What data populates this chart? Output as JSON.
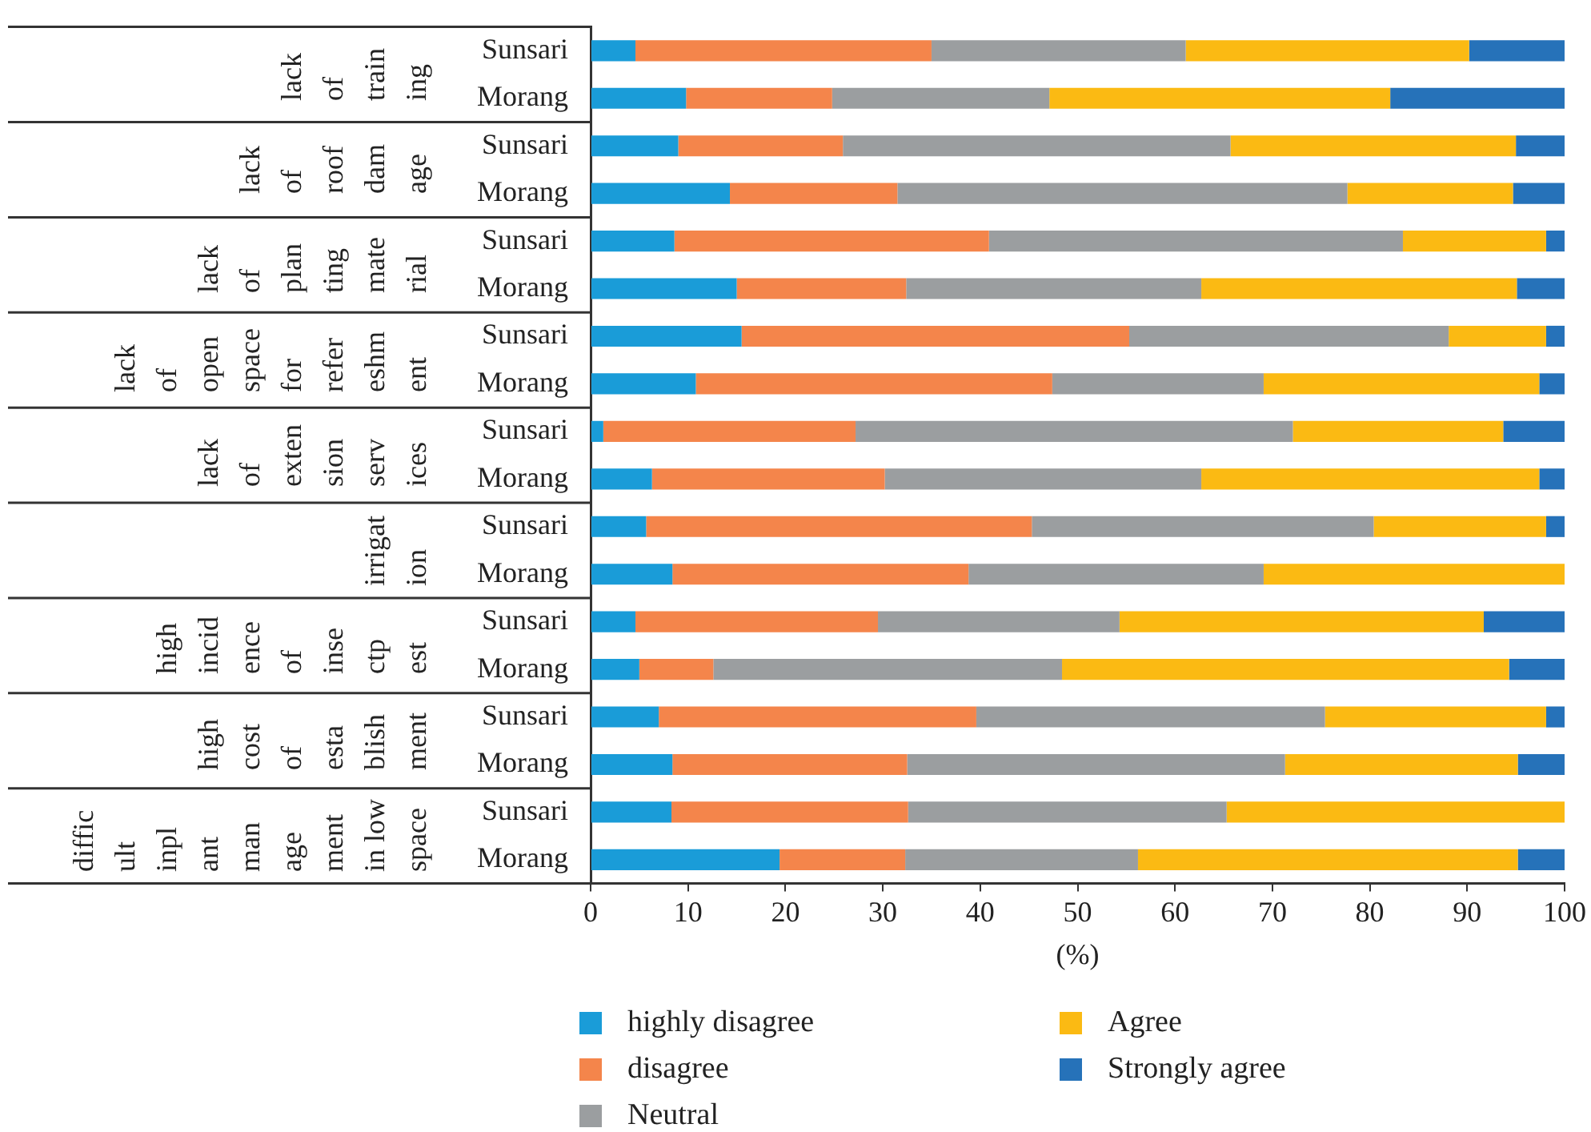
{
  "chart_data": {
    "type": "bar",
    "orientation": "horizontal",
    "stacked": true,
    "xlabel": "(%)",
    "categories": [
      "Sunsari",
      "Morang",
      "Sunsari",
      "Morang",
      "Sunsari",
      "Morang",
      "Sunsari",
      "Morang",
      "Sunsari",
      "Morang",
      "Sunsari",
      "Morang",
      "Sunsari",
      "Morang",
      "Sunsari",
      "Morang",
      "Sunsari",
      "Morang"
    ],
    "annotations": [
      "lack\nof\ntrain\ning",
      "lack\nof\nroof\ndam\nage",
      "lack\nof\nplan\nting\nmate\nrial",
      "lack\nof\nopen\nspace\nfor\nrefer\neshm\nent",
      "lack\nof\nexten\nsion\nserv\nices",
      "irrigat\nion",
      "high\nincid\nence\nof\ninse\nctp\nest",
      "high\ncost\nof\nesta\nblish\nment",
      "diffic\nult\ninpl\nant\nman\nage\nment\nin low\nspace"
    ],
    "series": [
      {
        "name": "highly disagree",
        "color": "#1a9cd8",
        "values": [
          4.6,
          9.8,
          9.0,
          14.3,
          8.6,
          15.0,
          15.5,
          10.8,
          1.3,
          6.3,
          5.7,
          8.4,
          4.6,
          5.0,
          7.0,
          8.4,
          8.3,
          19.4
        ]
      },
      {
        "name": "disagree",
        "color": "#f4854b",
        "values": [
          30.4,
          15.0,
          16.9,
          17.2,
          32.3,
          17.4,
          39.8,
          36.6,
          25.9,
          23.9,
          39.6,
          30.4,
          24.9,
          7.6,
          32.6,
          24.1,
          24.3,
          12.9
        ]
      },
      {
        "name": "Neutral",
        "color": "#9b9ea0",
        "values": [
          26.1,
          22.3,
          39.8,
          46.2,
          42.5,
          30.3,
          32.8,
          21.7,
          44.9,
          32.5,
          35.1,
          30.3,
          24.8,
          35.8,
          35.8,
          38.8,
          32.7,
          23.9
        ]
      },
      {
        "name": "Agree",
        "color": "#fbba13",
        "values": [
          29.1,
          35.0,
          29.3,
          17.0,
          14.7,
          32.4,
          10.0,
          28.3,
          21.6,
          34.7,
          17.7,
          30.9,
          37.4,
          45.9,
          22.7,
          23.9,
          34.7,
          39.0
        ]
      },
      {
        "name": "Strongly agree",
        "color": "#2672b9",
        "values": [
          9.8,
          17.9,
          5.0,
          5.3,
          1.9,
          4.9,
          1.9,
          2.6,
          6.3,
          2.6,
          1.9,
          0,
          8.3,
          5.7,
          1.9,
          4.8,
          0,
          4.8
        ]
      }
    ],
    "xlim": [
      0,
      100
    ],
    "xticks": [
      0,
      10,
      20,
      30,
      40,
      50,
      60,
      70,
      80,
      90,
      100
    ],
    "grid": false,
    "legend": "bottom"
  }
}
